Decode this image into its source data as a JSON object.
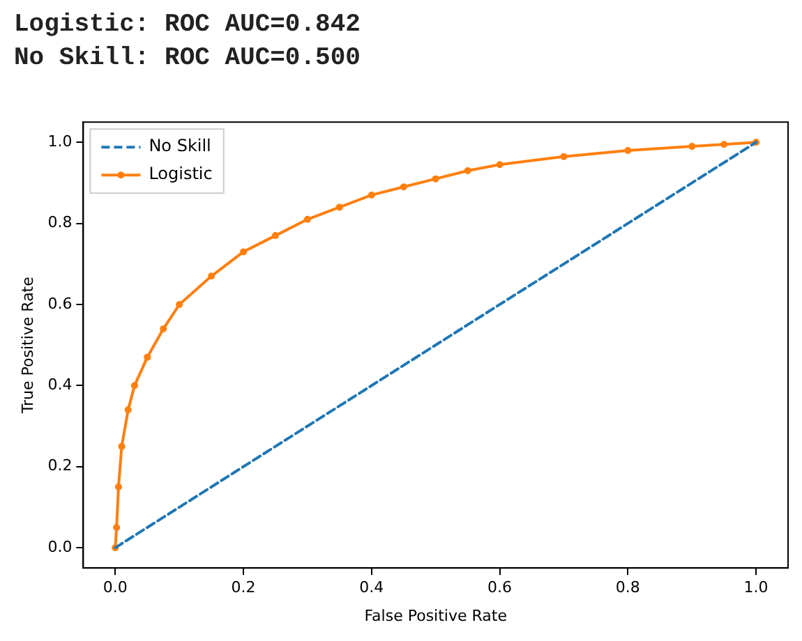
{
  "chart_data": {
    "type": "line",
    "annotations": [
      "Logistic: ROC AUC=0.842",
      "No Skill: ROC AUC=0.500"
    ],
    "xlabel": "False Positive Rate",
    "ylabel": "True Positive Rate",
    "xlim": [
      -0.05,
      1.05
    ],
    "ylim": [
      -0.05,
      1.05
    ],
    "xticks": [
      {
        "value": 0,
        "label": "0.0"
      },
      {
        "value": 0.2,
        "label": "0.2"
      },
      {
        "value": 0.4,
        "label": "0.4"
      },
      {
        "value": 0.6,
        "label": "0.6"
      },
      {
        "value": 0.8,
        "label": "0.8"
      },
      {
        "value": 1,
        "label": "1.0"
      }
    ],
    "yticks": [
      {
        "value": 0,
        "label": "0.0"
      },
      {
        "value": 0.2,
        "label": "0.2"
      },
      {
        "value": 0.4,
        "label": "0.4"
      },
      {
        "value": 0.6,
        "label": "0.6"
      },
      {
        "value": 0.8,
        "label": "0.8"
      },
      {
        "value": 1,
        "label": "1.0"
      }
    ],
    "grid": false,
    "legend": "top left",
    "series": [
      {
        "name": "No Skill",
        "color": "#1f77b4",
        "line_style": "dashed",
        "marker": "none",
        "x": [
          0,
          1
        ],
        "values": [
          0,
          1
        ]
      },
      {
        "name": "Logistic",
        "color": "#ff7f0e",
        "line_style": "solid",
        "marker": "circle",
        "x": [
          0,
          0.002,
          0.005,
          0.01,
          0.02,
          0.03,
          0.05,
          0.075,
          0.1,
          0.15,
          0.2,
          0.25,
          0.3,
          0.35,
          0.4,
          0.45,
          0.5,
          0.55,
          0.6,
          0.7,
          0.8,
          0.9,
          0.95,
          1
        ],
        "values": [
          0,
          0.05,
          0.15,
          0.25,
          0.34,
          0.4,
          0.47,
          0.54,
          0.6,
          0.67,
          0.73,
          0.77,
          0.81,
          0.84,
          0.87,
          0.89,
          0.91,
          0.93,
          0.945,
          0.965,
          0.98,
          0.99,
          0.995,
          1
        ]
      }
    ]
  }
}
